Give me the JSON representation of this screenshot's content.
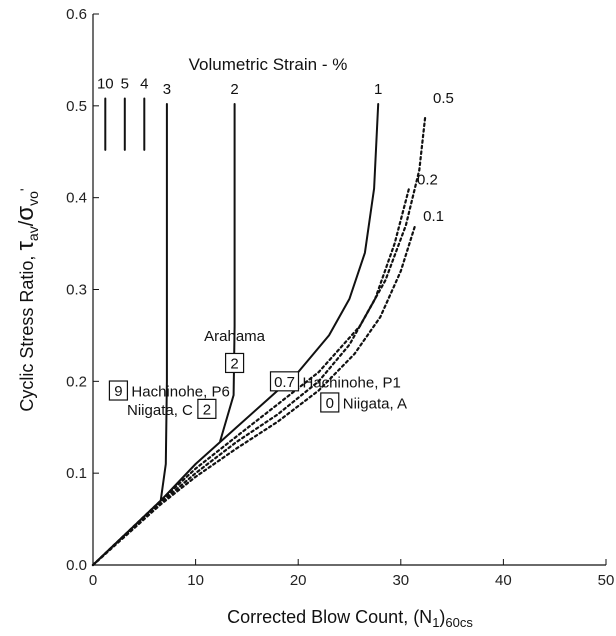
{
  "chart_data": {
    "type": "line",
    "title": "",
    "xlabel": "Corrected Blow Count, (N",
    "xlabel_sub1": "1",
    "xlabel_mid": ")",
    "xlabel_sub2": "60cs",
    "ylabel": "Cyclic Stress Ratio, ",
    "ylabel_tau": "τ",
    "ylabel_av": "av",
    "ylabel_slash": "/",
    "ylabel_sigma": "σ",
    "ylabel_vo": "vo",
    "ylabel_prime": "'",
    "xlim": [
      0,
      50
    ],
    "ylim": [
      0,
      0.6
    ],
    "xticks": [
      "0",
      "10",
      "20",
      "30",
      "40",
      "50"
    ],
    "xtick_values": [
      0,
      10,
      20,
      30,
      40,
      50
    ],
    "yticks": [
      "0.0",
      "0.1",
      "0.2",
      "0.3",
      "0.4",
      "0.5",
      "0.6"
    ],
    "ytick_values": [
      0,
      0.1,
      0.2,
      0.3,
      0.4,
      0.5,
      0.6
    ],
    "legend_header": "Volumetric Strain - %",
    "series": [
      {
        "name": "10",
        "style": "solid",
        "x": [
          1.2,
          1.2
        ],
        "y": [
          0.452,
          0.508
        ]
      },
      {
        "name": "5",
        "style": "solid",
        "x": [
          3.1,
          3.1
        ],
        "y": [
          0.452,
          0.508
        ]
      },
      {
        "name": "4",
        "style": "solid",
        "x": [
          5.0,
          5.0
        ],
        "y": [
          0.452,
          0.508
        ]
      },
      {
        "name": "3",
        "style": "solid",
        "x": [
          0,
          6.6,
          7.1,
          7.2,
          7.2
        ],
        "y": [
          0,
          0.07,
          0.11,
          0.2,
          0.502
        ]
      },
      {
        "name": "2",
        "style": "solid",
        "x": [
          12.4,
          13.7,
          13.8,
          13.8
        ],
        "y": [
          0.135,
          0.185,
          0.26,
          0.502
        ]
      },
      {
        "name": "1",
        "style": "solid",
        "x": [
          0,
          6.6,
          10,
          14,
          17,
          20,
          23,
          25,
          26.5,
          27.4,
          27.8
        ],
        "y": [
          0,
          0.07,
          0.11,
          0.15,
          0.18,
          0.21,
          0.25,
          0.29,
          0.34,
          0.41,
          0.502
        ]
      },
      {
        "name": "0.5",
        "style": "dotted",
        "x": [
          0,
          6.6,
          10,
          14,
          18,
          22,
          26,
          28.5,
          30.5,
          31.8,
          32.4
        ],
        "y": [
          0,
          0.07,
          0.105,
          0.14,
          0.175,
          0.21,
          0.26,
          0.31,
          0.37,
          0.43,
          0.49
        ]
      },
      {
        "name": "0.2",
        "style": "dotted",
        "x": [
          0,
          6.6,
          10,
          14,
          18,
          22,
          25,
          27.5,
          29.4,
          30.8
        ],
        "y": [
          0,
          0.068,
          0.1,
          0.134,
          0.164,
          0.2,
          0.24,
          0.29,
          0.35,
          0.41
        ]
      },
      {
        "name": "0.1",
        "style": "dotted",
        "x": [
          0,
          6.6,
          10,
          14,
          18,
          22,
          25.5,
          28,
          30,
          31.4
        ],
        "y": [
          0,
          0.066,
          0.096,
          0.127,
          0.156,
          0.19,
          0.23,
          0.27,
          0.32,
          0.37
        ]
      }
    ],
    "annotations": [
      {
        "box": "9",
        "text": "Hachinohe, P6",
        "x": 1.6,
        "y": 0.19
      },
      {
        "box": "2",
        "text": "Niigata, C",
        "x": 11.1,
        "y": 0.17
      },
      {
        "box": "2",
        "text": "Arahama",
        "x": 13.8,
        "y": 0.22
      },
      {
        "box": "0.7",
        "text": "Hachinohe, P1",
        "x": 17.3,
        "y": 0.2
      },
      {
        "box": "0",
        "text": "Niigata, A",
        "x": 22.2,
        "y": 0.177
      }
    ]
  }
}
